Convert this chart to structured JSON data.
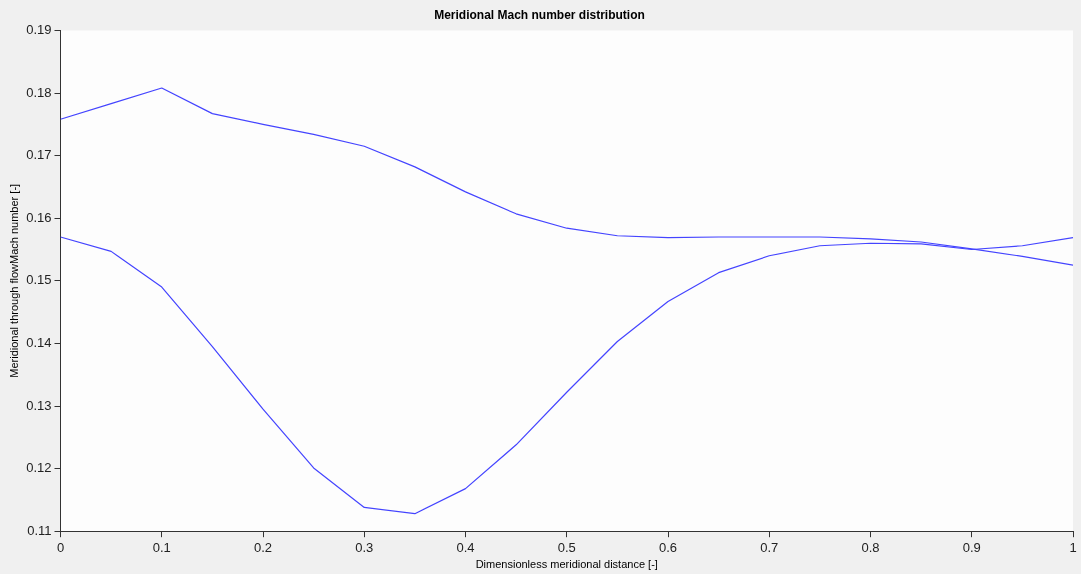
{
  "chart_data": {
    "type": "line",
    "title": "Meridional Mach number distribution",
    "xlabel": "Dimensionless meridional distance [-]",
    "ylabel": "Meridional through flowMach number [-]",
    "xlim": [
      0,
      1
    ],
    "xticks": [
      0,
      {
        "value": 0.1,
        "label": "0.1"
      },
      {
        "value": 0.2,
        "label": "0.2"
      },
      {
        "value": 0.3,
        "label": "0.3"
      },
      {
        "value": 0.4,
        "label": "0.4"
      },
      {
        "value": 0.5,
        "label": "0.5"
      },
      {
        "value": 0.6,
        "label": "0.6"
      },
      {
        "value": 0.7,
        "label": "0.7"
      },
      {
        "value": 0.8,
        "label": "0.8"
      },
      {
        "value": 0.9,
        "label": "0.9"
      },
      1
    ],
    "ylim": [
      0.11,
      0.19
    ],
    "yticks": [
      0.11,
      0.12,
      0.13,
      0.14,
      0.15,
      0.16,
      0.17,
      0.18,
      0.19
    ],
    "x": [
      0,
      0.05,
      0.1,
      0.15,
      0.2,
      0.25,
      0.3,
      0.35,
      0.4,
      0.45,
      0.5,
      0.55,
      0.6,
      0.65,
      0.7,
      0.75,
      0.8,
      0.85,
      0.9,
      0.95,
      1
    ],
    "grid": false,
    "legend": false,
    "marker": "none",
    "line_style": "solid",
    "series": [
      {
        "color": "#4444ff",
        "values": [
          0.1758,
          0.1783,
          0.1808,
          0.1767,
          0.175,
          0.1734,
          0.1715,
          0.1682,
          0.1642,
          0.1607,
          0.1584,
          0.1572,
          0.1569,
          0.157,
          0.157,
          0.157,
          0.1567,
          0.1562,
          0.1551,
          0.1539,
          0.1525
        ]
      },
      {
        "color": "#4444ff",
        "values": [
          0.157,
          0.1547,
          0.149,
          0.1395,
          0.1295,
          0.1201,
          0.1138,
          0.1128,
          0.1168,
          0.1238,
          0.1322,
          0.1403,
          0.1467,
          0.1513,
          0.154,
          0.1556,
          0.156,
          0.1559,
          0.155,
          0.1556,
          0.1569
        ]
      }
    ]
  }
}
